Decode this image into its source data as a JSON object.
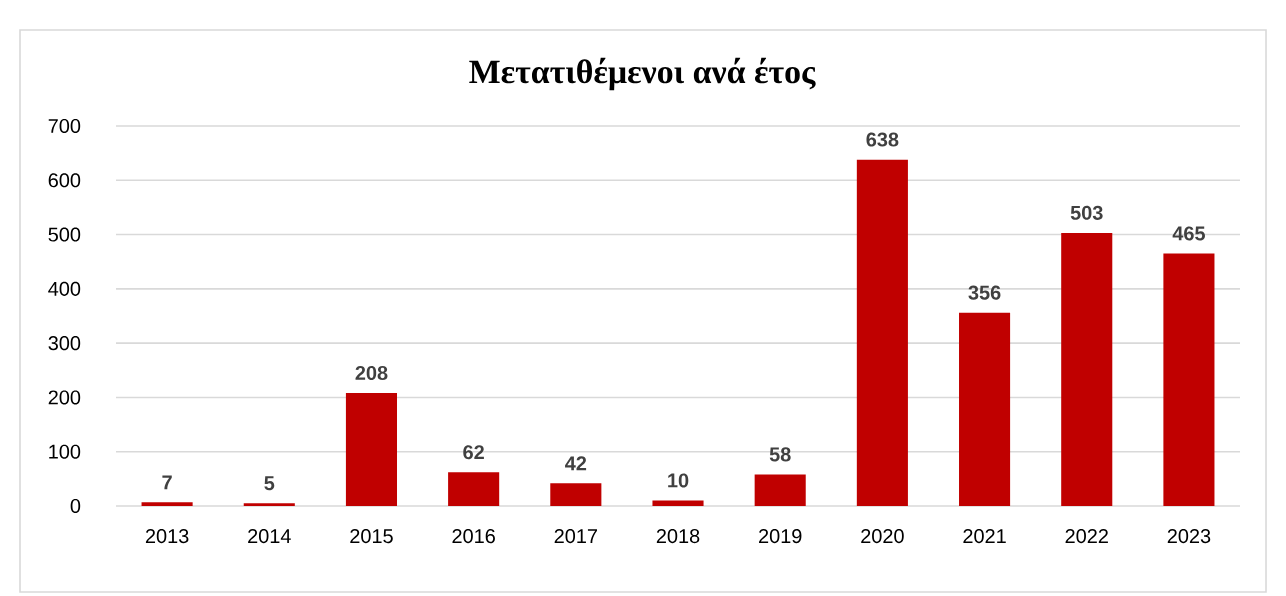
{
  "chart_data": {
    "type": "bar",
    "title": "Μετατιθέμενοι ανά έτος",
    "categories": [
      "2013",
      "2014",
      "2015",
      "2016",
      "2017",
      "2018",
      "2019",
      "2020",
      "2021",
      "2022",
      "2023"
    ],
    "values": [
      7,
      5,
      208,
      62,
      42,
      10,
      58,
      638,
      356,
      503,
      465
    ],
    "color": "#c00000",
    "ylim": [
      0,
      700
    ],
    "yticks": [
      0,
      100,
      200,
      300,
      400,
      500,
      600,
      700
    ],
    "grid": "y",
    "data_labels": true
  }
}
